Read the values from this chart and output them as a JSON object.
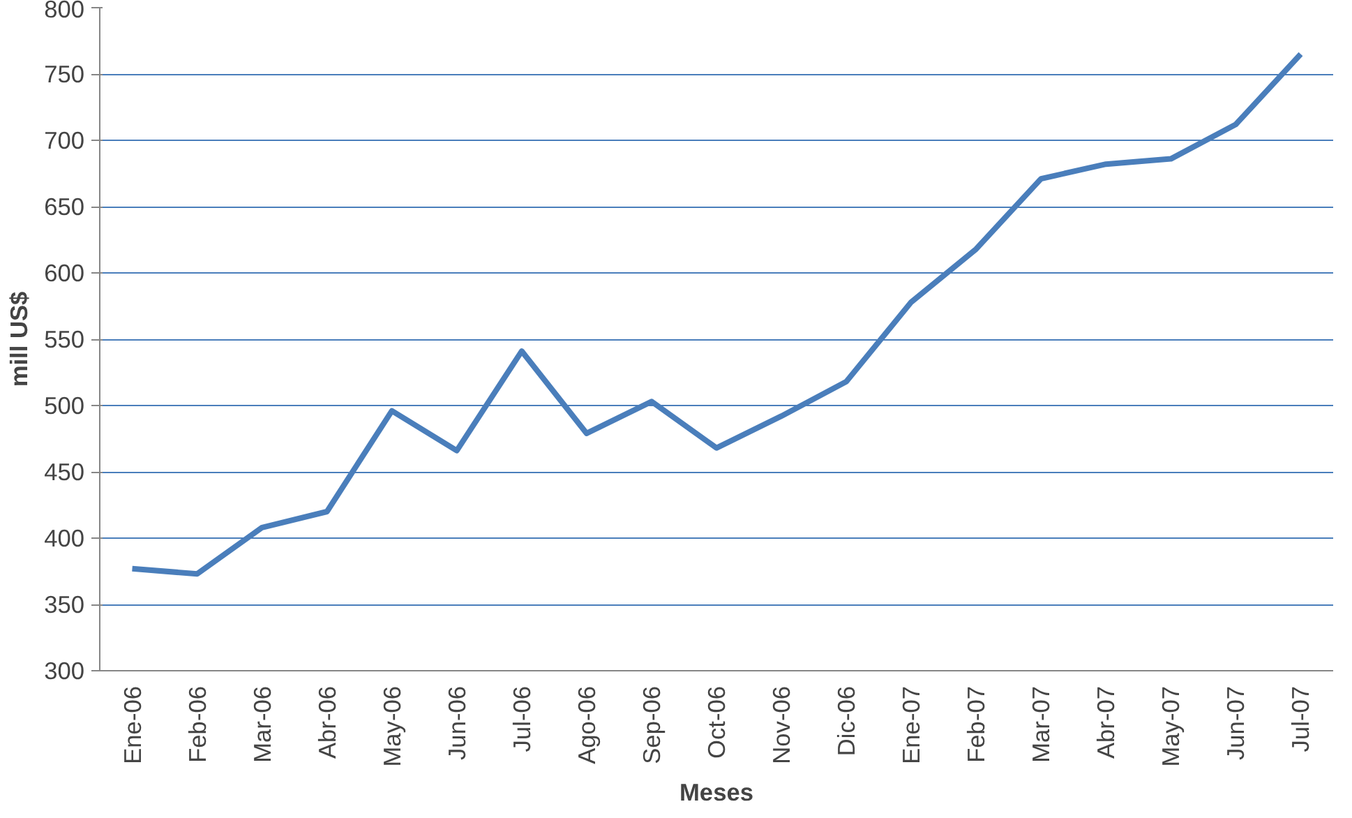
{
  "chart_data": {
    "type": "line",
    "xlabel": "Meses",
    "ylabel": "mill US$",
    "categories": [
      "Ene-06",
      "Feb-06",
      "Mar-06",
      "Abr-06",
      "May-06",
      "Jun-06",
      "Jul-06",
      "Ago-06",
      "Sep-06",
      "Oct-06",
      "Nov-06",
      "Dic-06",
      "Ene-07",
      "Feb-07",
      "Mar-07",
      "Abr-07",
      "May-07",
      "Jun-07",
      "Jul-07"
    ],
    "series": [
      {
        "color": "#4a7ebb",
        "values": [
          377,
          373,
          408,
          420,
          496,
          466,
          541,
          479,
          503,
          468,
          492,
          518,
          578,
          618,
          671,
          682,
          686,
          712,
          765
        ]
      }
    ],
    "ylim": [
      300,
      800
    ],
    "yticks": [
      300,
      350,
      400,
      450,
      500,
      550,
      600,
      650,
      700,
      750,
      800
    ],
    "grid": "y",
    "marker": "none",
    "line_style": "solid"
  }
}
